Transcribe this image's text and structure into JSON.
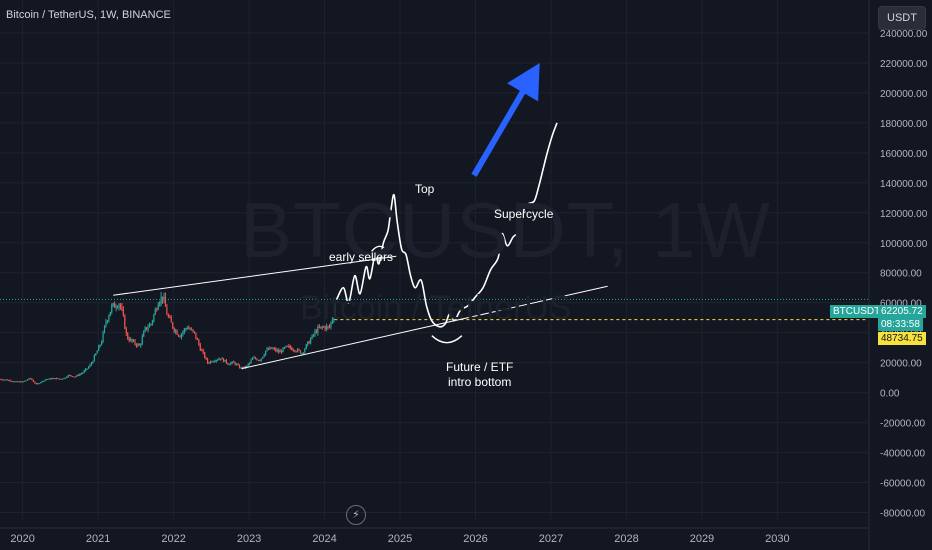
{
  "header": {
    "symbol_description": "Bitcoin / TetherUS, 1W, BINANCE",
    "currency_button": "USDT"
  },
  "watermark": {
    "main": "BTCUSDT, 1W",
    "sub": "Bitcoin / TetherUS"
  },
  "annotations": {
    "top": "Top",
    "early_sellers": "early sellers",
    "supercycle": "Supercycle",
    "bottom_line1": "Future / ETF",
    "bottom_line2": "intro bottom"
  },
  "price_labels": {
    "symbol": "BTCUSDT",
    "last_price": "62205.72",
    "countdown": "08:33:58",
    "level": "48734.75"
  },
  "colors": {
    "background": "#131722",
    "axis_text": "#b2b5be",
    "candle_up": "#26a69a",
    "candle_down": "#ef5350",
    "drawing": "#ffffff",
    "arrow": "#2962ff",
    "level_line": "#f7e23b",
    "price_line": "#26a69a"
  },
  "chart_data": {
    "type": "candlestick",
    "title": "Bitcoin / TetherUS, 1W, BINANCE",
    "x_ticks": [
      "2020",
      "2021",
      "2022",
      "2023",
      "2024",
      "2025",
      "2026",
      "2027",
      "2028",
      "2029",
      "2030"
    ],
    "y_ticks": [
      "240000.00",
      "220000.00",
      "200000.00",
      "180000.00",
      "160000.00",
      "140000.00",
      "120000.00",
      "100000.00",
      "80000.00",
      "60000.00",
      "40000.00",
      "20000.00",
      "0.00",
      "-20000.00",
      "-40000.00",
      "-60000.00",
      "-80000.00"
    ],
    "ylim": [
      -85000,
      250000
    ],
    "xlim": [
      2019.7,
      2031.2
    ],
    "last_price": 62205.72,
    "horizontal_level": 48734.75,
    "price_history": [
      [
        2019.7,
        9000
      ],
      [
        2019.8,
        8500
      ],
      [
        2019.9,
        7300
      ],
      [
        2020.0,
        7200
      ],
      [
        2020.1,
        9600
      ],
      [
        2020.18,
        5500
      ],
      [
        2020.3,
        8800
      ],
      [
        2020.4,
        9500
      ],
      [
        2020.5,
        9200
      ],
      [
        2020.55,
        9700
      ],
      [
        2020.6,
        11500
      ],
      [
        2020.7,
        10800
      ],
      [
        2020.8,
        13500
      ],
      [
        2020.9,
        18500
      ],
      [
        2021.0,
        29000
      ],
      [
        2021.05,
        35000
      ],
      [
        2021.1,
        47000
      ],
      [
        2021.18,
        57000
      ],
      [
        2021.28,
        60000
      ],
      [
        2021.33,
        51000
      ],
      [
        2021.38,
        37000
      ],
      [
        2021.45,
        34000
      ],
      [
        2021.55,
        31000
      ],
      [
        2021.62,
        42000
      ],
      [
        2021.7,
        46000
      ],
      [
        2021.76,
        55000
      ],
      [
        2021.8,
        62000
      ],
      [
        2021.86,
        64000
      ],
      [
        2021.92,
        51000
      ],
      [
        2022.0,
        43000
      ],
      [
        2022.08,
        38000
      ],
      [
        2022.18,
        44000
      ],
      [
        2022.28,
        39000
      ],
      [
        2022.35,
        30000
      ],
      [
        2022.45,
        20000
      ],
      [
        2022.55,
        22000
      ],
      [
        2022.62,
        23000
      ],
      [
        2022.72,
        19500
      ],
      [
        2022.8,
        20000
      ],
      [
        2022.88,
        16500
      ],
      [
        2022.96,
        16800
      ],
      [
        2023.05,
        23000
      ],
      [
        2023.15,
        22000
      ],
      [
        2023.22,
        28000
      ],
      [
        2023.3,
        29500
      ],
      [
        2023.4,
        27000
      ],
      [
        2023.5,
        30500
      ],
      [
        2023.6,
        29000
      ],
      [
        2023.7,
        26500
      ],
      [
        2023.8,
        34500
      ],
      [
        2023.9,
        42000
      ],
      [
        2024.0,
        44000
      ],
      [
        2024.06,
        43000
      ],
      [
        2024.12,
        52000
      ],
      [
        2024.16,
        62205
      ]
    ],
    "projection_path": [
      [
        2024.16,
        62205
      ],
      [
        2024.25,
        70000
      ],
      [
        2024.32,
        60000
      ],
      [
        2024.4,
        78000
      ],
      [
        2024.47,
        66000
      ],
      [
        2024.55,
        84000
      ],
      [
        2024.6,
        76000
      ],
      [
        2024.67,
        92000
      ],
      [
        2024.72,
        86000
      ],
      [
        2024.78,
        100000
      ],
      [
        2024.84,
        108000
      ],
      [
        2024.88,
        122000
      ],
      [
        2024.92,
        132000
      ],
      [
        2024.96,
        115000
      ],
      [
        2025.02,
        96000
      ],
      [
        2025.08,
        92000
      ],
      [
        2025.14,
        78000
      ],
      [
        2025.2,
        70000
      ],
      [
        2025.28,
        75000
      ],
      [
        2025.35,
        58000
      ],
      [
        2025.42,
        48000
      ],
      [
        2025.52,
        44000
      ],
      [
        2025.6,
        46000
      ],
      [
        2025.66,
        53000
      ],
      [
        2025.72,
        48000
      ],
      [
        2025.8,
        55000
      ],
      [
        2025.9,
        58000
      ],
      [
        2026.0,
        64000
      ],
      [
        2026.1,
        70000
      ],
      [
        2026.2,
        82000
      ],
      [
        2026.3,
        90000
      ],
      [
        2026.35,
        106000
      ],
      [
        2026.42,
        98000
      ],
      [
        2026.5,
        104000
      ],
      [
        2026.58,
        108000
      ],
      [
        2026.64,
        122000
      ],
      [
        2026.7,
        126000
      ],
      [
        2026.78,
        128000
      ],
      [
        2026.84,
        138000
      ],
      [
        2026.9,
        150000
      ],
      [
        2026.95,
        160000
      ],
      [
        2027.02,
        172000
      ],
      [
        2027.08,
        180000
      ]
    ],
    "upper_trendline": [
      [
        2021.2,
        65000
      ],
      [
        2024.95,
        91000
      ]
    ],
    "lower_trendline": [
      [
        2022.9,
        16000
      ],
      [
        2027.75,
        71000
      ]
    ],
    "blue_arrow": [
      [
        2025.98,
        145000
      ],
      [
        2026.85,
        220000
      ]
    ]
  }
}
